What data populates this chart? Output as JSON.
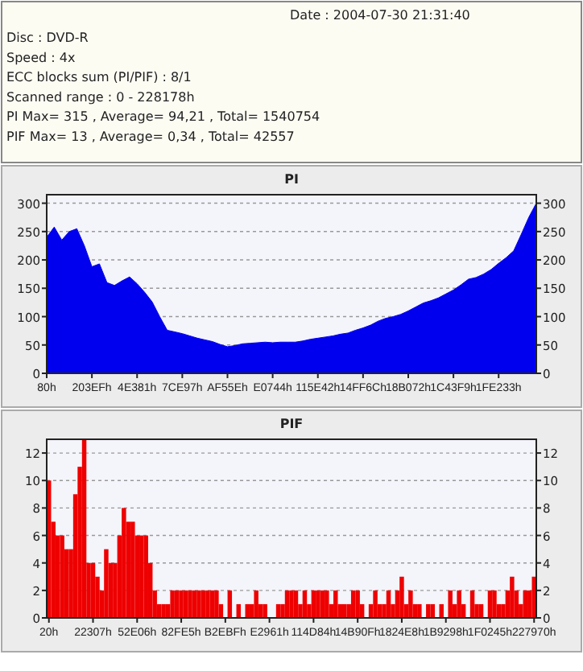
{
  "chart_data": [
    {
      "type": "other",
      "annotations": [
        "Date : 2004-07-30 21:31:40",
        "Disc : DVD-R",
        "Speed : 4x",
        "ECC blocks sum (PI/PIF) : 8/1",
        "Scanned range : 0 - 228178h",
        "PI Max= 315 , Average= 94,21 , Total= 1540754",
        "PIF Max= 13 , Average= 0,34 , Total= 42557"
      ]
    },
    {
      "type": "area",
      "title": "PI",
      "color": "#0000ee",
      "grid": "y",
      "categories": [
        "80h",
        null,
        null,
        null,
        null,
        null,
        "203EFh",
        null,
        null,
        null,
        null,
        null,
        "4E381h",
        null,
        null,
        null,
        null,
        null,
        "7CE97h",
        null,
        null,
        null,
        null,
        null,
        "AF55Eh",
        null,
        null,
        null,
        null,
        null,
        "E0744h",
        null,
        null,
        null,
        null,
        null,
        "115E42h",
        null,
        null,
        null,
        null,
        null,
        "14FF6Ch",
        null,
        null,
        null,
        null,
        null,
        "18B072h",
        null,
        null,
        null,
        null,
        null,
        "1C43F9h",
        null,
        null,
        null,
        null,
        null,
        "1FE233h",
        null,
        null,
        null,
        null,
        null
      ],
      "values": [
        240,
        258,
        235,
        250,
        255,
        225,
        188,
        193,
        160,
        155,
        163,
        170,
        158,
        143,
        126,
        100,
        76,
        73,
        70,
        66,
        62,
        59,
        56,
        51,
        47,
        49,
        52,
        53,
        54,
        55,
        54,
        55,
        55,
        55,
        57,
        60,
        62,
        64,
        66,
        69,
        71,
        76,
        80,
        85,
        92,
        97,
        100,
        104,
        110,
        117,
        124,
        128,
        133,
        140,
        147,
        156,
        166,
        169,
        175,
        183,
        194,
        204,
        216,
        245,
        275,
        300
      ],
      "ylim": [
        0,
        315
      ],
      "yticks": [
        0,
        50,
        100,
        150,
        200,
        250,
        300
      ],
      "y2lim": [
        0,
        315
      ],
      "y2ticks": [
        0,
        50,
        100,
        150,
        200,
        250,
        300
      ]
    },
    {
      "type": "bar",
      "title": "PIF",
      "color": "#ee0000",
      "grid": "y",
      "categories": [
        "20h",
        null,
        null,
        null,
        null,
        null,
        null,
        null,
        null,
        null,
        "22307h",
        null,
        null,
        null,
        null,
        null,
        null,
        null,
        null,
        null,
        "52E06h",
        null,
        null,
        null,
        null,
        null,
        null,
        null,
        null,
        null,
        "82FE5h",
        null,
        null,
        null,
        null,
        null,
        null,
        null,
        null,
        null,
        "B2EBFh",
        null,
        null,
        null,
        null,
        null,
        null,
        null,
        null,
        null,
        "E2961h",
        null,
        null,
        null,
        null,
        null,
        null,
        null,
        null,
        null,
        "114D84h",
        null,
        null,
        null,
        null,
        null,
        null,
        null,
        null,
        null,
        "14B90Fh",
        null,
        null,
        null,
        null,
        null,
        null,
        null,
        null,
        null,
        "1824E8h",
        null,
        null,
        null,
        null,
        null,
        null,
        null,
        null,
        null,
        "1B9298h",
        null,
        null,
        null,
        null,
        null,
        null,
        null,
        null,
        null,
        "1F0245h",
        null,
        null,
        null,
        null,
        null,
        null,
        null,
        null,
        null,
        "227970h"
      ],
      "values": [
        10,
        7,
        6,
        6,
        5,
        5,
        9,
        11,
        13,
        4,
        4,
        3,
        2,
        5,
        4,
        4,
        6,
        8,
        7,
        7,
        6,
        6,
        6,
        4,
        2,
        1,
        1,
        1,
        2,
        2,
        2,
        2,
        2,
        2,
        2,
        2,
        2,
        2,
        2,
        1,
        0,
        2,
        0,
        1,
        0,
        1,
        1,
        2,
        1,
        1,
        0,
        0,
        1,
        1,
        2,
        2,
        2,
        1,
        2,
        1,
        2,
        2,
        2,
        2,
        1,
        2,
        1,
        1,
        1,
        2,
        2,
        1,
        0,
        1,
        2,
        1,
        1,
        2,
        1,
        2,
        3,
        1,
        2,
        1,
        1,
        0,
        1,
        1,
        0,
        1,
        0,
        2,
        1,
        2,
        1,
        0,
        2,
        1,
        1,
        0,
        2,
        2,
        1,
        1,
        2,
        3,
        2,
        1,
        2,
        2,
        3
      ],
      "ylim": [
        0,
        13
      ],
      "yticks": [
        0,
        2,
        4,
        6,
        8,
        10,
        12
      ],
      "y2lim": [
        0,
        13
      ],
      "y2ticks": [
        0,
        2,
        4,
        6,
        8,
        10,
        12
      ]
    }
  ]
}
